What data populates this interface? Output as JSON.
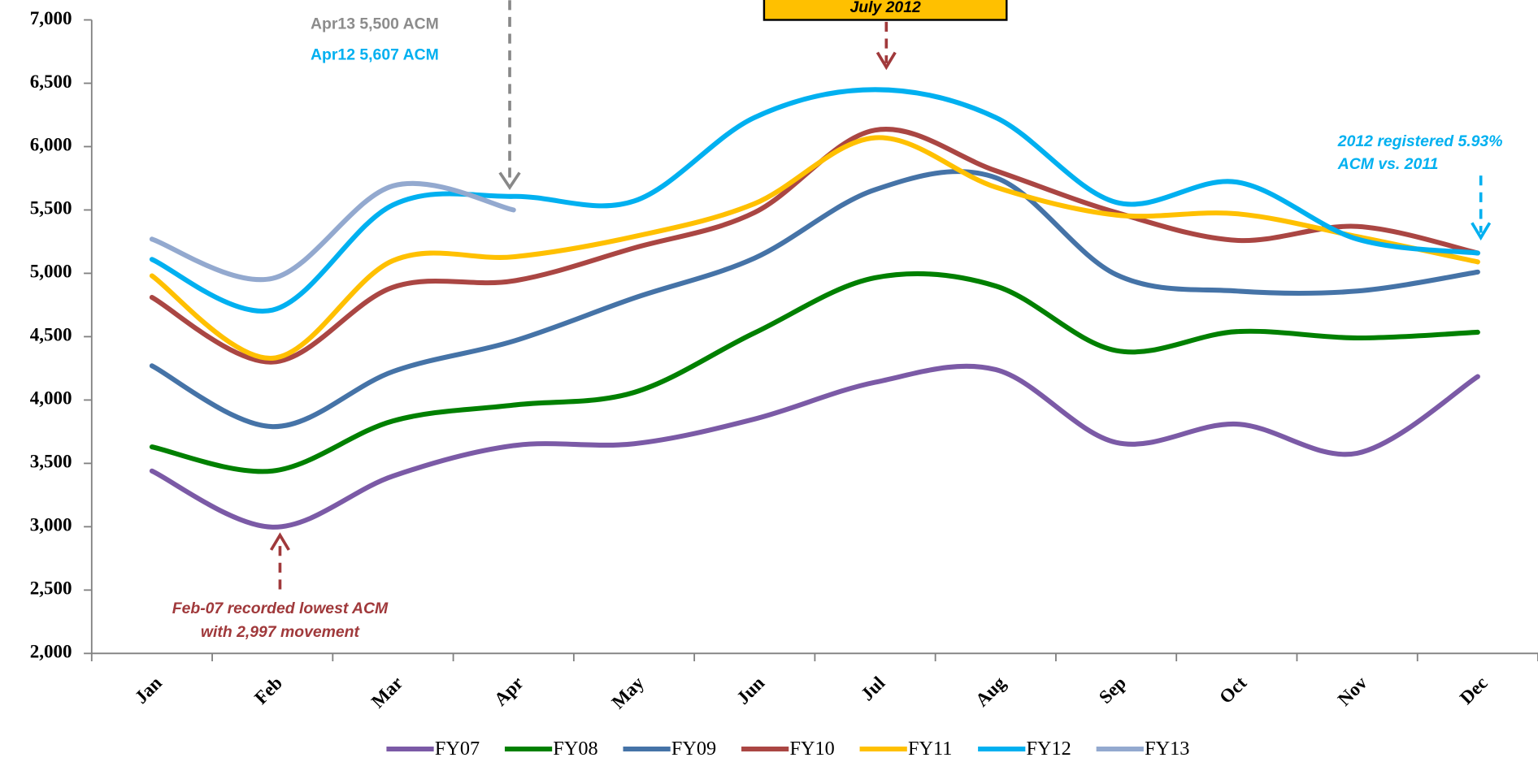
{
  "chart_data": {
    "type": "line",
    "categories": [
      "Jan",
      "Feb",
      "Mar",
      "Apr",
      "May",
      "Jun",
      "Jul",
      "Aug",
      "Sep",
      "Oct",
      "Nov",
      "Dec"
    ],
    "series": [
      {
        "name": "FY07",
        "color": "#7b5aa6",
        "values": [
          3440,
          2997,
          3400,
          3640,
          3655,
          3850,
          4140,
          4240,
          3665,
          3810,
          3580,
          4185
        ]
      },
      {
        "name": "FY08",
        "color": "#008000",
        "values": [
          3630,
          3440,
          3835,
          3960,
          4060,
          4530,
          4965,
          4900,
          4390,
          4540,
          4490,
          4535
        ]
      },
      {
        "name": "FY09",
        "color": "#4573a7",
        "values": [
          4270,
          3790,
          4225,
          4465,
          4805,
          5120,
          5660,
          5755,
          4990,
          4860,
          4860,
          5010
        ]
      },
      {
        "name": "FY10",
        "color": "#aa4643",
        "values": [
          4810,
          4300,
          4890,
          4940,
          5200,
          5480,
          6130,
          5810,
          5480,
          5260,
          5370,
          5160
        ]
      },
      {
        "name": "FY11",
        "color": "#ffc000",
        "values": [
          4980,
          4330,
          5100,
          5130,
          5290,
          5550,
          6070,
          5680,
          5460,
          5470,
          5290,
          5090
        ]
      },
      {
        "name": "FY12",
        "color": "#00b0f0",
        "values": [
          5110,
          4710,
          5540,
          5607,
          5570,
          6230,
          6450,
          6230,
          5560,
          5720,
          5270,
          5160
        ]
      },
      {
        "name": "FY13",
        "color": "#93a9cf",
        "values": [
          5270,
          4960,
          5690,
          5500,
          null,
          null,
          null,
          null,
          null,
          null,
          null,
          null
        ]
      }
    ],
    "ylim": [
      2000,
      7000
    ],
    "yticks": [
      {
        "value": 2000,
        "label": "2,000"
      },
      {
        "value": 2500,
        "label": "2,500"
      },
      {
        "value": 3000,
        "label": "3,000"
      },
      {
        "value": 3500,
        "label": "3,500"
      },
      {
        "value": 4000,
        "label": "4,000"
      },
      {
        "value": 4500,
        "label": "4,500"
      },
      {
        "value": 5000,
        "label": "5,000"
      },
      {
        "value": 5500,
        "label": "5,500"
      },
      {
        "value": 6000,
        "label": "6,000"
      },
      {
        "value": 6500,
        "label": "6,500"
      },
      {
        "value": 7000,
        "label": "7,000"
      }
    ],
    "annotations": [
      "Apr13 5,500 ACM",
      "Apr12 5,607 ACM",
      "July 2012",
      "Feb-07 recorded lowest ACM",
      "with 2,997 movement",
      "2012 registered 5.93%",
      "ACM vs. 2011"
    ],
    "legend": "bottom"
  }
}
